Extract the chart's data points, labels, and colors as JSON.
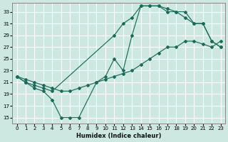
{
  "xlabel": "Humidex (Indice chaleur)",
  "bg_color": "#cce8e0",
  "grid_color": "#ffffff",
  "line_color": "#1a6b5a",
  "xlim": [
    -0.5,
    23.5
  ],
  "ylim": [
    14,
    34.5
  ],
  "xticks": [
    0,
    1,
    2,
    3,
    4,
    5,
    6,
    7,
    8,
    9,
    10,
    11,
    12,
    13,
    14,
    15,
    16,
    17,
    18,
    19,
    20,
    21,
    22,
    23
  ],
  "yticks": [
    15,
    17,
    19,
    21,
    23,
    25,
    27,
    29,
    31,
    33
  ],
  "line1_x": [
    0,
    1,
    2,
    3,
    4,
    5,
    6,
    7,
    9,
    10,
    11,
    12,
    13,
    14,
    15,
    16,
    17,
    18,
    19,
    20,
    21,
    22,
    23
  ],
  "line1_y": [
    22,
    21,
    20,
    19.5,
    18,
    15,
    15,
    15,
    21,
    22,
    25,
    23,
    29,
    34,
    34,
    34,
    33.5,
    33,
    33,
    31,
    31,
    28,
    27
  ],
  "line2_x": [
    0,
    1,
    2,
    3,
    4,
    11,
    12,
    13,
    14,
    15,
    16,
    17,
    18,
    19,
    20,
    21,
    22,
    23
  ],
  "line2_y": [
    22,
    21,
    20.5,
    20,
    19.5,
    29,
    31,
    32,
    34,
    34,
    34,
    33,
    33,
    32,
    31,
    31,
    28,
    27
  ],
  "line3_x": [
    0,
    1,
    2,
    3,
    4,
    5,
    6,
    7,
    8,
    9,
    10,
    11,
    12,
    13,
    14,
    15,
    16,
    17,
    18,
    19,
    20,
    21,
    22,
    23
  ],
  "line3_y": [
    22,
    21.5,
    21,
    20.5,
    20,
    19.5,
    19.5,
    20,
    20.5,
    21,
    21.5,
    22,
    22.5,
    23,
    24,
    25,
    26,
    27,
    27,
    28,
    28,
    27.5,
    27,
    28
  ]
}
